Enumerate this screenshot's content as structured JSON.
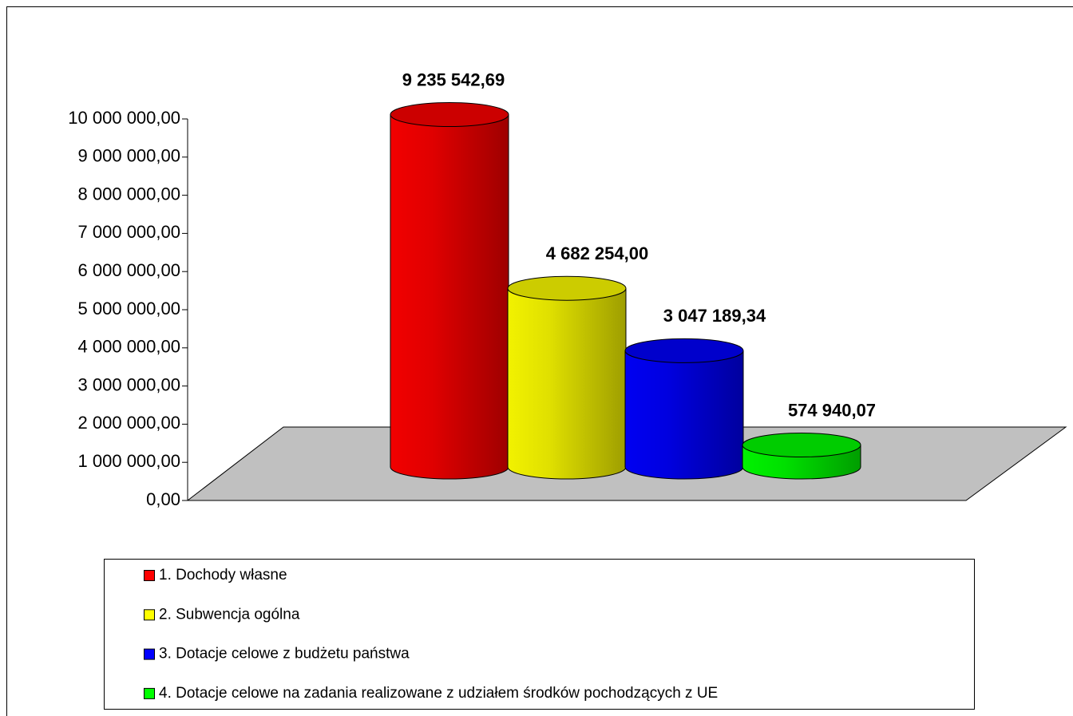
{
  "chart_data": {
    "type": "bar",
    "categories": [
      null
    ],
    "series": [
      {
        "name": "1. Dochody własne",
        "color": "#ff0000",
        "values": [
          9235542.69
        ],
        "value_labels": [
          "9 235 542,69"
        ]
      },
      {
        "name": "2. Subwencja ogólna",
        "color": "#ffff00",
        "values": [
          4682254.0
        ],
        "value_labels": [
          "4 682 254,00"
        ]
      },
      {
        "name": "3. Dotacje celowe z budżetu państwa",
        "color": "#0000ff",
        "values": [
          3047189.34
        ],
        "value_labels": [
          "3 047 189,34"
        ]
      },
      {
        "name": "4. Dotacje celowe na zadania realizowane z udziałem środków pochodzących z UE",
        "color": "#00ff00",
        "values": [
          574940.07
        ],
        "value_labels": [
          "574 940,07"
        ]
      }
    ],
    "ylim": [
      0,
      10000000
    ],
    "yticks": [
      {
        "value": 0,
        "label": "0,00"
      },
      {
        "value": 1000000,
        "label": "1 000 000,00"
      },
      {
        "value": 2000000,
        "label": "2 000 000,00"
      },
      {
        "value": 3000000,
        "label": "3 000 000,00"
      },
      {
        "value": 4000000,
        "label": "4 000 000,00"
      },
      {
        "value": 5000000,
        "label": "5 000 000,00"
      },
      {
        "value": 6000000,
        "label": "6 000 000,00"
      },
      {
        "value": 7000000,
        "label": "7 000 000,00"
      },
      {
        "value": 8000000,
        "label": "8 000 000,00"
      },
      {
        "value": 9000000,
        "label": "9 000 000,00"
      },
      {
        "value": 10000000,
        "label": "10 000 000,00"
      }
    ],
    "grid": false,
    "legend": "bottom"
  }
}
